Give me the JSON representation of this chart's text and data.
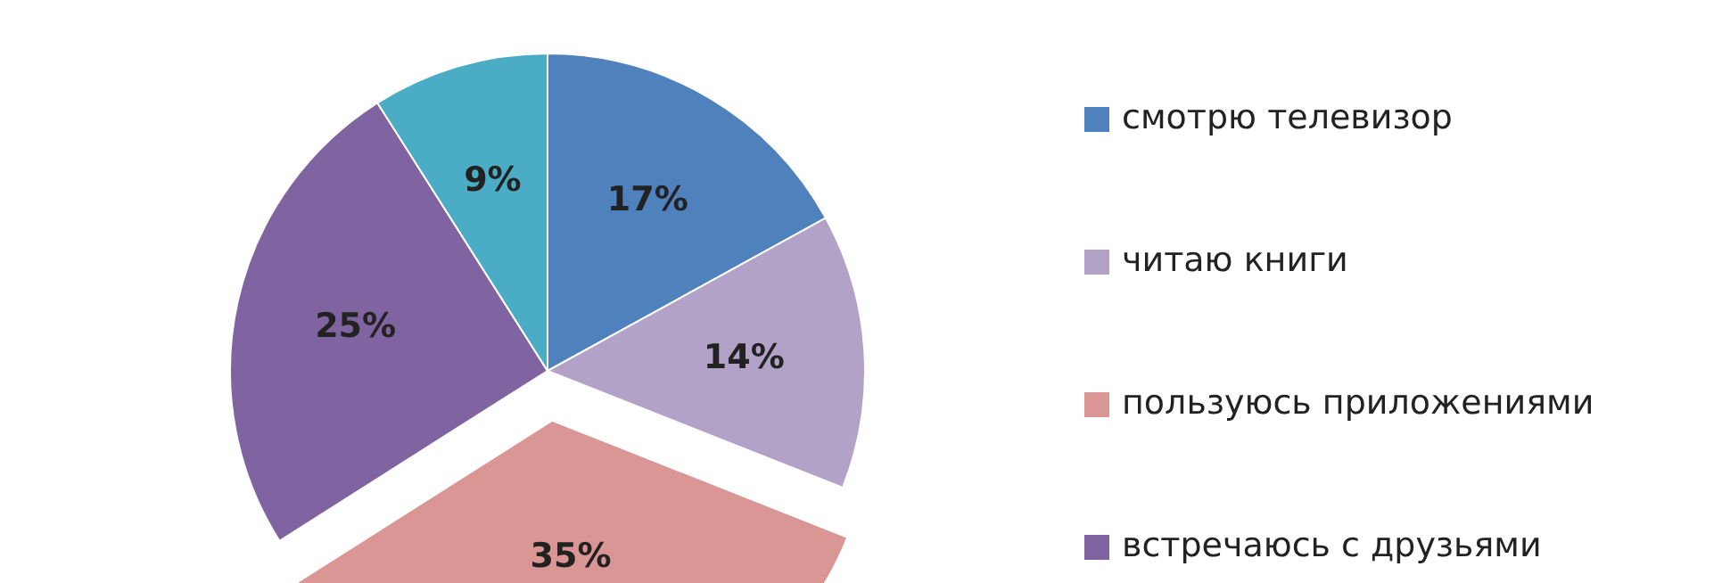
{
  "chart_data": {
    "type": "pie",
    "categories": [
      "смотрю телевизор",
      "читаю книги",
      "пользуюсь приложениями",
      "встречаюсь с друзьями",
      null
    ],
    "values": [
      17,
      14,
      35,
      25,
      9
    ],
    "colors": [
      "#4f81bd",
      "#b3a2c7",
      "#d99694",
      "#8064a2",
      "#4bacc6"
    ],
    "value_labels": [
      "17%",
      "14%",
      "35%",
      "25%",
      "9%"
    ],
    "legend": "right"
  }
}
